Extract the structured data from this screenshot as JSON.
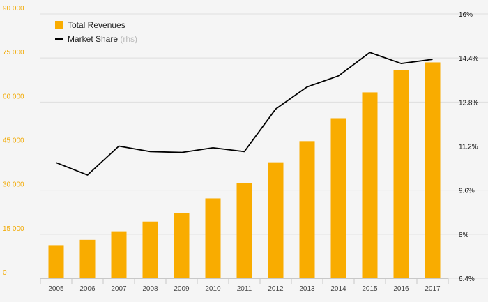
{
  "chart_data": {
    "type": "bar+line",
    "categories": [
      "2005",
      "2006",
      "2007",
      "2008",
      "2009",
      "2010",
      "2011",
      "2012",
      "2013",
      "2014",
      "2015",
      "2016",
      "2017"
    ],
    "series": [
      {
        "name": "Total Revenues",
        "type": "bar",
        "axis": "left",
        "color": "#f9ac00",
        "values": [
          11300,
          13100,
          16000,
          19300,
          22300,
          27200,
          32400,
          39500,
          46700,
          54500,
          63300,
          70800,
          73500
        ]
      },
      {
        "name": "Market Share",
        "type": "line",
        "axis": "right",
        "color": "#000000",
        "values": [
          10.6,
          10.15,
          11.2,
          11.0,
          10.97,
          11.14,
          11.0,
          12.55,
          13.35,
          13.75,
          14.6,
          14.2,
          14.35
        ]
      }
    ],
    "y_left": {
      "range": [
        0,
        90000
      ],
      "ticks": [
        0,
        15000,
        30000,
        45000,
        60000,
        75000,
        90000
      ],
      "tick_labels": [
        "0",
        "15 000",
        "30 000",
        "45 000",
        "60 000",
        "75 000",
        "90 000"
      ]
    },
    "y_right": {
      "range": [
        6.4,
        16
      ],
      "ticks": [
        6.4,
        8,
        9.6,
        11.2,
        12.8,
        14.4,
        16
      ],
      "tick_labels": [
        "6.4%",
        "8%",
        "9.6%",
        "11.2%",
        "12.8%",
        "14.4%",
        "16%"
      ]
    },
    "legend": {
      "position": "top-left",
      "items": [
        {
          "label": "Total Revenues",
          "note": ""
        },
        {
          "label": "Market Share",
          "note": "(rhs)"
        }
      ]
    },
    "grid": true
  },
  "colors": {
    "background": "#f5f5f5",
    "bar": "#f9ac00",
    "line": "#000000",
    "grid": "#dedede",
    "left_axis_text": "#f2a900",
    "right_axis_text": "#111111"
  }
}
